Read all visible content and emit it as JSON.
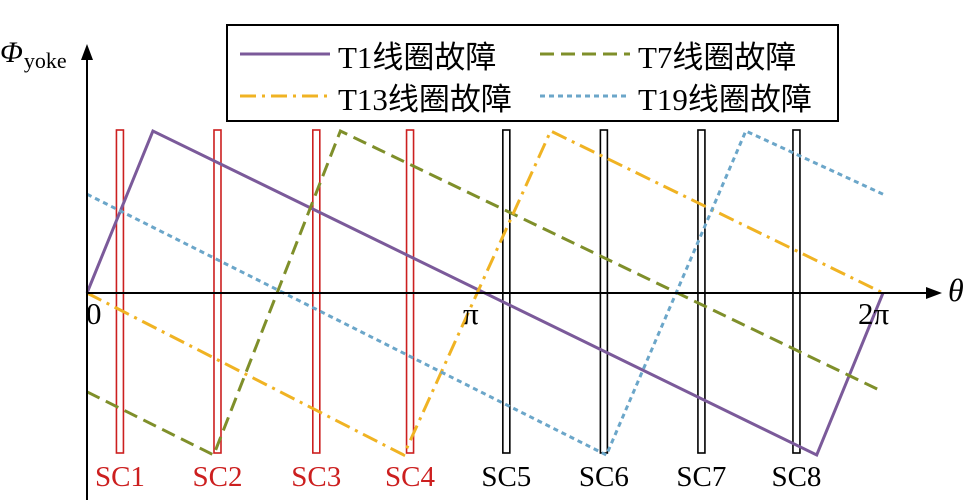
{
  "chart_data": {
    "type": "line",
    "xlabel": "θ",
    "ylabel": "Φ",
    "ylabel_sub": "yoke",
    "x_ticks": [
      {
        "value": 0,
        "label": "0"
      },
      {
        "value": 3.1416,
        "label": "π"
      },
      {
        "value": 6.2832,
        "label": "2π"
      }
    ],
    "xlim": [
      0,
      7.0
    ],
    "ylim": [
      -1.35,
      1.55
    ],
    "grid": false,
    "legend": {
      "position": "top-right",
      "columns": 2
    },
    "series": [
      {
        "name": "T1线圈故障",
        "color": "#7b5a9a",
        "style": "solid",
        "x": [
          0,
          0.52,
          5.76,
          6.2832
        ],
        "y": [
          0,
          1.0,
          -1.0,
          0
        ]
      },
      {
        "name": "T7线圈故障",
        "color": "#7f8f2a",
        "style": "dashed",
        "x": [
          0,
          1.0,
          2.0,
          6.2832
        ],
        "y": [
          -0.61,
          -1.0,
          1.0,
          -0.61
        ]
      },
      {
        "name": "T13线圈故障",
        "color": "#f0b323",
        "style": "dashdot",
        "x": [
          0,
          2.5,
          3.66,
          6.2832
        ],
        "y": [
          0,
          -1.0,
          1.0,
          0
        ]
      },
      {
        "name": "T19线圈故障",
        "color": "#6ba6c9",
        "style": "dotted",
        "x": [
          0,
          4.1,
          5.2,
          6.2832
        ],
        "y": [
          0.61,
          -1.0,
          1.0,
          0.61
        ]
      }
    ],
    "sc_markers": [
      {
        "label": "SC1",
        "x": 0.26,
        "color": "#cc1f1f"
      },
      {
        "label": "SC2",
        "x": 1.03,
        "color": "#cc1f1f"
      },
      {
        "label": "SC3",
        "x": 1.81,
        "color": "#cc1f1f"
      },
      {
        "label": "SC4",
        "x": 2.55,
        "color": "#cc1f1f"
      },
      {
        "label": "SC5",
        "x": 3.31,
        "color": "#000000"
      },
      {
        "label": "SC6",
        "x": 4.08,
        "color": "#000000"
      },
      {
        "label": "SC7",
        "x": 4.85,
        "color": "#000000"
      },
      {
        "label": "SC8",
        "x": 5.6,
        "color": "#000000"
      }
    ]
  }
}
